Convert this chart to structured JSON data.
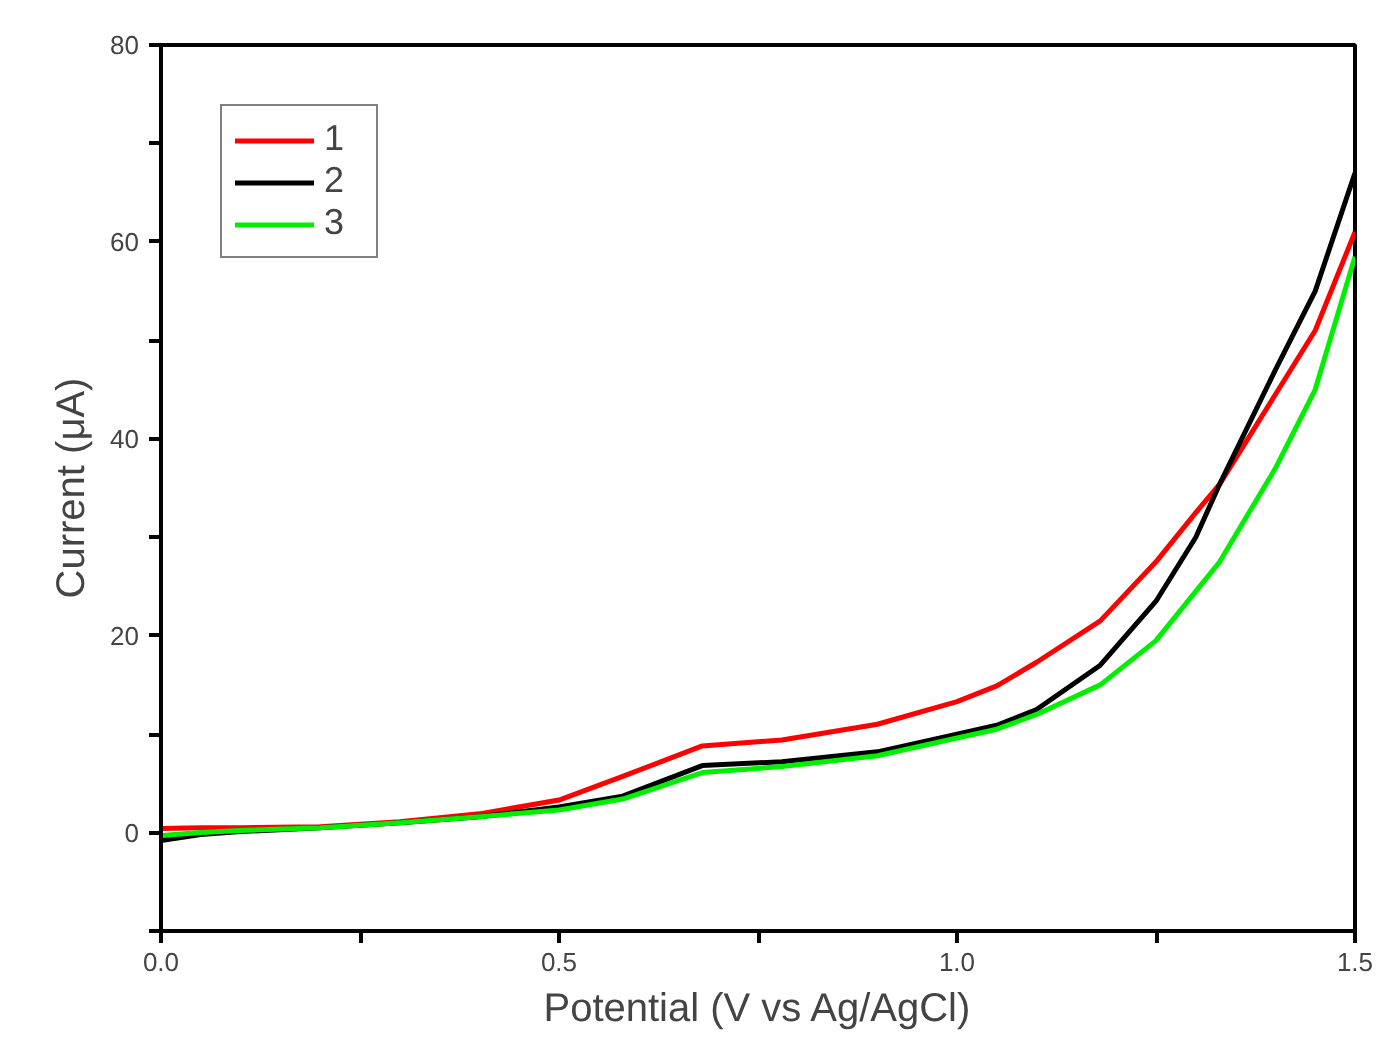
{
  "chart_data": {
    "type": "line",
    "xlabel": "Potential (V vs Ag/AgCl)",
    "ylabel": "Current (μA)",
    "x": [
      0,
      0.05,
      0.1,
      0.2,
      0.3,
      0.4,
      0.5,
      0.58,
      0.68,
      0.78,
      0.9,
      1.0,
      1.05,
      1.1,
      1.18,
      1.25,
      1.3,
      1.33,
      1.4,
      1.45,
      1.5
    ],
    "series": [
      {
        "name": "1",
        "color": "#ff0000",
        "values": [
          0.4,
          0.5,
          0.5,
          0.6,
          1.1,
          1.9,
          3.3,
          5.7,
          8.8,
          9.4,
          11.0,
          13.3,
          14.9,
          17.3,
          21.5,
          27.5,
          32.5,
          35.4,
          44.5,
          51,
          61
        ]
      },
      {
        "name": "2",
        "color": "#000000",
        "values": [
          -0.8,
          -0.2,
          0.1,
          0.5,
          1.0,
          1.6,
          2.6,
          3.7,
          6.8,
          7.2,
          8.2,
          10.0,
          10.9,
          12.5,
          17,
          23.5,
          30,
          35.4,
          47,
          55,
          67
        ]
      },
      {
        "name": "3",
        "color": "#00ee00",
        "values": [
          -0.3,
          0,
          0.2,
          0.5,
          1.0,
          1.6,
          2.3,
          3.4,
          6.1,
          6.7,
          7.8,
          9.6,
          10.5,
          12,
          15,
          19.5,
          24.5,
          27.5,
          37,
          45,
          58.5
        ]
      }
    ],
    "xlim": [
      0,
      1.5
    ],
    "ylim": [
      -10,
      80
    ],
    "xticks": [
      {
        "value": 0,
        "label": "0.0"
      },
      {
        "value": 0.25,
        "label": null
      },
      0.5,
      {
        "value": 0.75,
        "label": null
      },
      {
        "value": 1,
        "label": "1.0"
      },
      {
        "value": 1.25,
        "label": null
      },
      1.5
    ],
    "yticks": [
      {
        "value": -10,
        "label": null
      },
      0,
      {
        "value": 10,
        "label": null
      },
      20,
      {
        "value": 30,
        "label": null
      },
      40,
      {
        "value": 50,
        "label": null
      },
      60,
      {
        "value": 70,
        "label": null
      },
      80
    ],
    "legend": "top left",
    "grid": false,
    "marker": "none",
    "line_style": "solid"
  }
}
